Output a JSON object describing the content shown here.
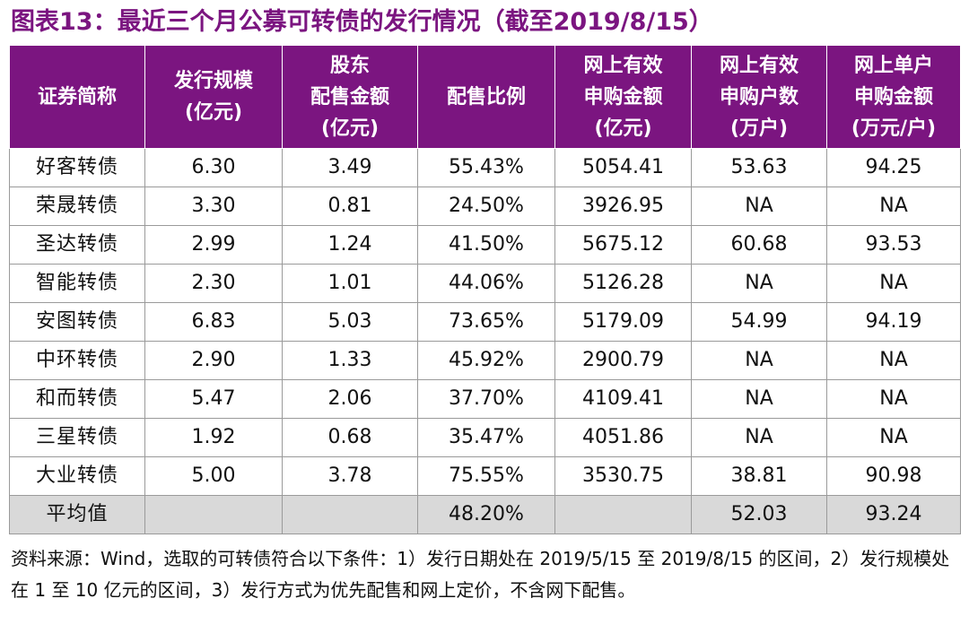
{
  "title": "图表13：最近三个月公募可转债的发行情况（截至2019/8/15）",
  "headers": [
    [
      "证券简称"
    ],
    [
      "发行规模",
      "(亿元)"
    ],
    [
      "股东",
      "配售金额",
      "(亿元)"
    ],
    [
      "配售比例"
    ],
    [
      "网上有效",
      "申购金额",
      "(亿元)"
    ],
    [
      "网上有效",
      "申购户数",
      "(万户)"
    ],
    [
      "网上单户",
      "申购金额",
      "(万元/户)"
    ]
  ],
  "rows": [
    [
      "好客转债",
      "6.30",
      "3.49",
      "55.43%",
      "5054.41",
      "53.63",
      "94.25"
    ],
    [
      "荣晟转债",
      "3.30",
      "0.81",
      "24.50%",
      "3926.95",
      "NA",
      "NA"
    ],
    [
      "圣达转债",
      "2.99",
      "1.24",
      "41.50%",
      "5675.12",
      "60.68",
      "93.53"
    ],
    [
      "智能转债",
      "2.30",
      "1.01",
      "44.06%",
      "5126.28",
      "NA",
      "NA"
    ],
    [
      "安图转债",
      "6.83",
      "5.03",
      "73.65%",
      "5179.09",
      "54.99",
      "94.19"
    ],
    [
      "中环转债",
      "2.90",
      "1.33",
      "45.92%",
      "2900.79",
      "NA",
      "NA"
    ],
    [
      "和而转债",
      "5.47",
      "2.06",
      "37.70%",
      "4109.41",
      "NA",
      "NA"
    ],
    [
      "三星转债",
      "1.92",
      "0.68",
      "35.47%",
      "4051.86",
      "NA",
      "NA"
    ],
    [
      "大业转债",
      "5.00",
      "3.78",
      "75.55%",
      "3530.75",
      "38.81",
      "90.98"
    ]
  ],
  "average": [
    "平均值",
    "",
    "",
    "48.20%",
    "",
    "52.03",
    "93.24"
  ],
  "note": "资料来源：Wind，选取的可转债符合以下条件：1）发行日期处在 2019/5/15 至 2019/8/15 的区间，2）发行规模处在 1 至 10 亿元的区间，3）发行方式为优先配售和网上定价，不含网下配售。",
  "colors": {
    "header_bg": "#7b1580",
    "title": "#7b1580",
    "average_row_bg": "#d9d9d9"
  }
}
